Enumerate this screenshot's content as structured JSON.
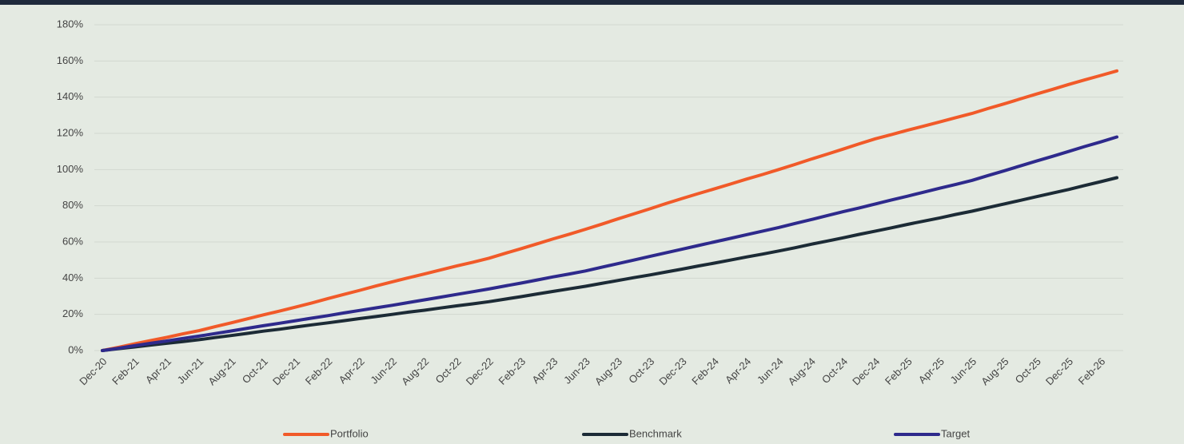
{
  "chart_data": {
    "type": "line",
    "categories": [
      "Dec-20",
      null,
      "Feb-21",
      null,
      "Apr-21",
      null,
      "Jun-21",
      null,
      "Aug-21",
      null,
      "Oct-21",
      null,
      "Dec-21",
      null,
      "Feb-22",
      null,
      "Apr-22",
      null,
      "Jun-22",
      null,
      "Aug-22",
      null,
      "Oct-22",
      null,
      "Dec-22",
      null,
      "Feb-23",
      null,
      "Apr-23",
      null,
      "Jun-23",
      null,
      "Aug-23",
      null,
      "Oct-23",
      null,
      "Dec-23",
      null,
      "Feb-24",
      null,
      "Apr-24",
      null,
      "Jun-24",
      null,
      "Aug-24",
      null,
      "Oct-24",
      null,
      "Dec-24",
      null,
      "Feb-25",
      null,
      "Apr-25",
      null,
      "Jun-25",
      null,
      "Aug-25",
      null,
      "Oct-25",
      null,
      "Dec-25",
      null,
      "Feb-26",
      null
    ],
    "series": [
      {
        "name": "Portfolio",
        "color": "#f15a29",
        "values": [
          0,
          1.8,
          3.7,
          5.5,
          7.3,
          9.2,
          11,
          13.2,
          15.3,
          17.5,
          19.7,
          21.8,
          24,
          26.3,
          28.7,
          31,
          33.3,
          35.7,
          38,
          40.2,
          42.3,
          44.5,
          46.7,
          48.8,
          51,
          53.7,
          56.3,
          59,
          61.7,
          64.3,
          67,
          69.8,
          72.7,
          75.5,
          78.3,
          81.2,
          84,
          86.7,
          89.3,
          92,
          94.7,
          97.3,
          100,
          102.8,
          105.7,
          108.5,
          111.3,
          114.2,
          117,
          119.3,
          121.7,
          124,
          126.3,
          128.7,
          131,
          133.7,
          136.3,
          139,
          141.7,
          144.3,
          147,
          149.5,
          152,
          154.5
        ]
      },
      {
        "name": "Benchmark",
        "color": "#1c2b36",
        "values": [
          0,
          1,
          2,
          3,
          4,
          5,
          6,
          7.2,
          8.3,
          9.5,
          10.7,
          11.8,
          13,
          14.2,
          15.3,
          16.5,
          17.7,
          18.8,
          20,
          21.2,
          22.3,
          23.5,
          24.7,
          25.8,
          27,
          28.4,
          29.8,
          31.3,
          32.7,
          34.1,
          35.5,
          37.1,
          38.7,
          40.3,
          41.8,
          43.4,
          45,
          46.7,
          48.3,
          50,
          51.7,
          53.3,
          55,
          56.8,
          58.7,
          60.5,
          62.3,
          64.2,
          66,
          67.8,
          69.7,
          71.5,
          73.3,
          75.2,
          77,
          79,
          81,
          83,
          85,
          87,
          89,
          91.2,
          93.3,
          95.5
        ]
      },
      {
        "name": "Target",
        "color": "#2e2a8c",
        "values": [
          0,
          1.3,
          2.7,
          4,
          5.3,
          6.7,
          8,
          9.4,
          10.8,
          12.3,
          13.7,
          15.1,
          16.5,
          17.9,
          19.3,
          20.8,
          22.2,
          23.6,
          25,
          26.5,
          28,
          29.5,
          31,
          32.5,
          34,
          35.7,
          37.3,
          39,
          40.7,
          42.3,
          44,
          46,
          48,
          50,
          52,
          54,
          56,
          58,
          60,
          62,
          64,
          66,
          68,
          70.2,
          72.3,
          74.5,
          76.7,
          78.8,
          81,
          83.2,
          85.3,
          87.5,
          89.7,
          91.8,
          94,
          96.7,
          99.3,
          102,
          104.7,
          107.3,
          110,
          112.7,
          115.3,
          118
        ]
      }
    ],
    "ylim": [
      0,
      180
    ],
    "yticks": [
      {
        "value": 0,
        "label": "0%"
      },
      {
        "value": 20,
        "label": "20%"
      },
      {
        "value": 40,
        "label": "40%"
      },
      {
        "value": 60,
        "label": "60%"
      },
      {
        "value": 80,
        "label": "80%"
      },
      {
        "value": 100,
        "label": "100%"
      },
      {
        "value": 120,
        "label": "120%"
      },
      {
        "value": 140,
        "label": "140%"
      },
      {
        "value": 160,
        "label": "160%"
      },
      {
        "value": 180,
        "label": "180%"
      }
    ],
    "grid": true,
    "legend": "bottom"
  }
}
